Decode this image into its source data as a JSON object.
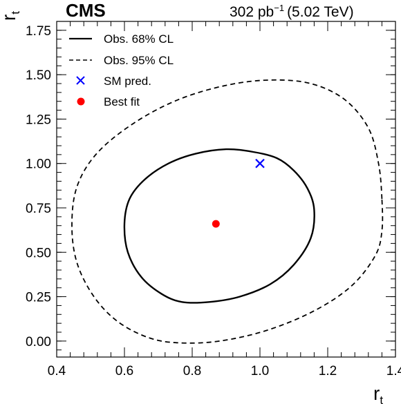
{
  "chart_data": {
    "type": "contour",
    "header": {
      "experiment": "CMS",
      "lumi_value": "302 pb",
      "lumi_exp": "−1",
      "energy": "(5.02 TeV)"
    },
    "x_axis": {
      "label": "r",
      "label_sub": "t",
      "range": [
        0.4,
        1.4
      ],
      "ticks": [
        0.4,
        0.6,
        0.8,
        1.0,
        1.2,
        1.4
      ],
      "tick_labels": [
        "0.4",
        "0.6",
        "0.8",
        "1.0",
        "1.2",
        "1.4"
      ]
    },
    "y_axis": {
      "label": "r",
      "label_sub": "t",
      "range": [
        -0.09,
        1.8
      ],
      "ticks": [
        0.0,
        0.25,
        0.5,
        0.75,
        1.0,
        1.25,
        1.5,
        1.75
      ],
      "tick_labels": [
        "0.00",
        "0.25",
        "0.50",
        "0.75",
        "1.00",
        "1.25",
        "1.50",
        "1.75"
      ]
    },
    "legend": {
      "position": "top-left",
      "entries": [
        {
          "label": "Obs. 68% CL",
          "style": "solid-line"
        },
        {
          "label": "Obs. 95% CL",
          "style": "dashed-line"
        },
        {
          "label": "SM pred.",
          "style": "blue-cross"
        },
        {
          "label": "Best fit",
          "style": "red-dot"
        }
      ]
    },
    "series": [
      {
        "name": "Obs. 68% CL",
        "style": "solid",
        "closed": true,
        "points": [
          [
            1.16,
            0.74
          ],
          [
            1.14,
            0.86
          ],
          [
            1.1,
            0.96
          ],
          [
            1.05,
            1.03
          ],
          [
            0.98,
            1.065
          ],
          [
            0.9,
            1.08
          ],
          [
            0.81,
            1.055
          ],
          [
            0.73,
            1.0
          ],
          [
            0.66,
            0.91
          ],
          [
            0.615,
            0.8
          ],
          [
            0.6,
            0.66
          ],
          [
            0.61,
            0.5
          ],
          [
            0.65,
            0.36
          ],
          [
            0.71,
            0.265
          ],
          [
            0.77,
            0.22
          ],
          [
            0.85,
            0.22
          ],
          [
            0.94,
            0.25
          ],
          [
            1.03,
            0.32
          ],
          [
            1.1,
            0.43
          ],
          [
            1.15,
            0.58
          ]
        ]
      },
      {
        "name": "Obs. 95% CL",
        "style": "dashed",
        "closed": true,
        "points": [
          [
            1.36,
            0.8
          ],
          [
            1.35,
            1.0
          ],
          [
            1.32,
            1.2
          ],
          [
            1.25,
            1.36
          ],
          [
            1.15,
            1.45
          ],
          [
            1.03,
            1.47
          ],
          [
            0.9,
            1.44
          ],
          [
            0.76,
            1.36
          ],
          [
            0.63,
            1.23
          ],
          [
            0.52,
            1.06
          ],
          [
            0.46,
            0.87
          ],
          [
            0.445,
            0.65
          ],
          [
            0.46,
            0.44
          ],
          [
            0.51,
            0.25
          ],
          [
            0.58,
            0.11
          ],
          [
            0.67,
            0.02
          ],
          [
            0.76,
            -0.01
          ],
          [
            0.88,
            0.0
          ],
          [
            1.02,
            0.06
          ],
          [
            1.16,
            0.17
          ],
          [
            1.27,
            0.31
          ],
          [
            1.34,
            0.48
          ],
          [
            1.36,
            0.62
          ]
        ]
      }
    ],
    "points": {
      "sm_prediction": {
        "x": 1.0,
        "y": 1.0,
        "color": "#0000ff",
        "marker": "cross"
      },
      "best_fit": {
        "x": 0.87,
        "y": 0.66,
        "color": "#ff0000",
        "marker": "dot"
      }
    }
  }
}
